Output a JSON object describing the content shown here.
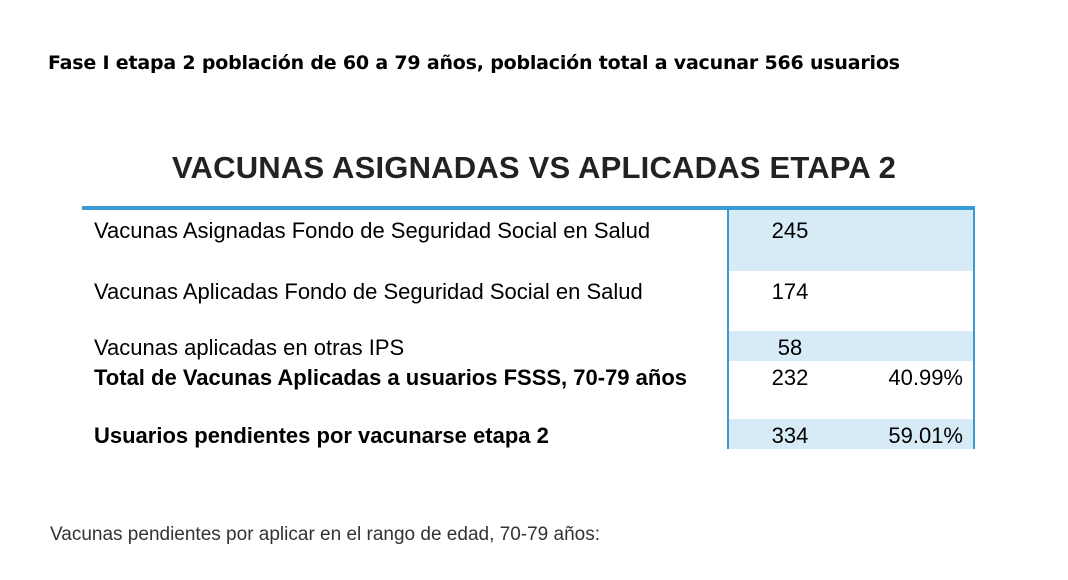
{
  "heading": "Fase I etapa 2 población de 60 a 79 años, población total a vacunar 566 usuarios",
  "table": {
    "title": "VACUNAS ASIGNADAS VS APLICADAS ETAPA 2",
    "rows": [
      {
        "label": "Vacunas Asignadas Fondo de Seguridad Social en Salud",
        "value": "245",
        "percent": ""
      },
      {
        "label": "Vacunas  Aplicadas Fondo de Seguridad Social en Salud",
        "value": "174",
        "percent": ""
      },
      {
        "label": "Vacunas aplicadas en otras IPS",
        "value": "58",
        "percent": ""
      },
      {
        "label": "Total de Vacunas Aplicadas a usuarios FSSS, 70-79 años",
        "value": "232",
        "percent": "40.99%"
      },
      {
        "label": "Usuarios pendientes por vacunarse etapa 2",
        "value": "334",
        "percent": "59.01%"
      }
    ]
  },
  "footer": "Vacunas pendientes por aplicar en el rango de edad, 70-79 años:",
  "colors": {
    "accent_border": "#3a9ad6",
    "shaded_cell": "#d7ebf7"
  }
}
